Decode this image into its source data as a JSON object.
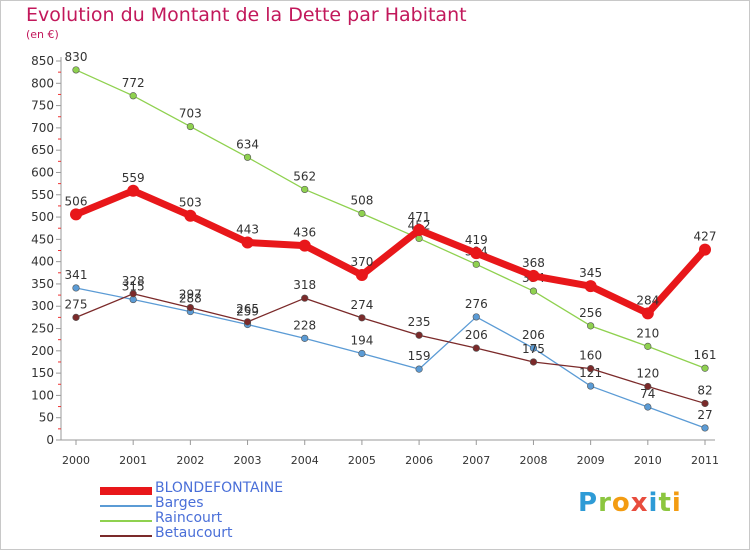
{
  "header": {
    "title": "Evolution du Montant de la Dette par Habitant",
    "unit": "(en €)"
  },
  "logo": {
    "letters": [
      "P",
      "r",
      "o",
      "x",
      "i",
      "t",
      "i"
    ],
    "colors": [
      "#2e9bd6",
      "#8cc63f",
      "#f39c12",
      "#e84c3d",
      "#2e9bd6",
      "#8cc63f",
      "#f39c12"
    ]
  },
  "chart_data": {
    "type": "line",
    "title": "Evolution du Montant de la Dette par Habitant",
    "ylabel": "(en €)",
    "xlabel": "",
    "x": [
      "2000",
      "2001",
      "2002",
      "2003",
      "2004",
      "2005",
      "2006",
      "2007",
      "2008",
      "2009",
      "2010",
      "2011"
    ],
    "ylim": [
      0,
      850
    ],
    "yticks": [
      0,
      50,
      100,
      150,
      200,
      250,
      300,
      350,
      400,
      450,
      500,
      550,
      600,
      650,
      700,
      750,
      800,
      850
    ],
    "grid": false,
    "legend_position": "bottom-left",
    "series": [
      {
        "name": "BLONDEFONTAINE",
        "color": "#e8171a",
        "width": 7,
        "values": [
          506,
          559,
          503,
          443,
          436,
          370,
          471,
          419,
          368,
          345,
          284,
          427
        ]
      },
      {
        "name": "Barges",
        "color": "#5b9bd5",
        "width": 1.3,
        "values": [
          341,
          315,
          288,
          259,
          228,
          194,
          159,
          276,
          206,
          121,
          74,
          27
        ]
      },
      {
        "name": "Raincourt",
        "color": "#8fd14f",
        "width": 1.3,
        "values": [
          830,
          772,
          703,
          634,
          562,
          508,
          452,
          394,
          334,
          256,
          210,
          161
        ]
      },
      {
        "name": "Betaucourt",
        "color": "#7b2a2a",
        "width": 1.3,
        "values": [
          275,
          328,
          297,
          265,
          318,
          274,
          235,
          206,
          175,
          160,
          120,
          82
        ]
      }
    ]
  }
}
